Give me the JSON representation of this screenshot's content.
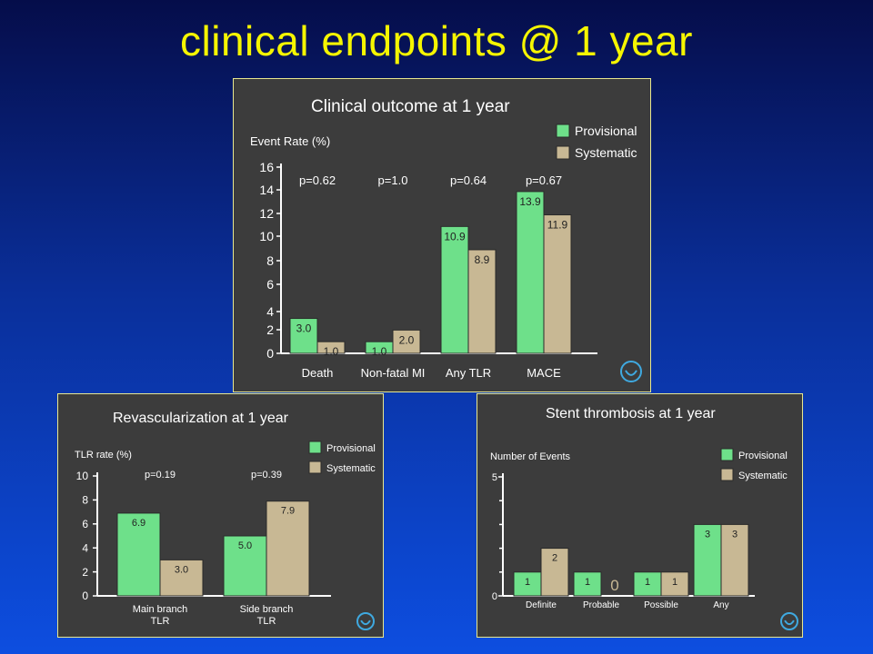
{
  "slide": {
    "title": "clinical endpoints @ 1 year"
  },
  "colors": {
    "provisional": "#6ee08a",
    "systematic": "#c8b894",
    "panel_bg": "#3c3c3c",
    "title": "#f5f500"
  },
  "chart_data": [
    {
      "id": "clinical",
      "type": "bar",
      "title": "Clinical outcome at 1 year",
      "ylabel": "Event Rate (%)",
      "xlabel": "",
      "ylim": [
        0,
        16
      ],
      "yticks": [
        0,
        2,
        4,
        6,
        8,
        10,
        12,
        14,
        16
      ],
      "categories": [
        "Death",
        "Non-fatal MI",
        "Any TLR",
        "MACE"
      ],
      "series": [
        {
          "name": "Provisional",
          "values": [
            3.0,
            1.0,
            10.9,
            13.9
          ],
          "labels": [
            "3.0",
            "1.0",
            "10.9",
            "13.9"
          ]
        },
        {
          "name": "Systematic",
          "values": [
            1.0,
            2.0,
            8.9,
            11.9
          ],
          "labels": [
            "1.0",
            "2.0",
            "8.9",
            "11.9"
          ]
        }
      ],
      "annotations": [
        "p=0.62",
        "p=1.0",
        "p=0.64",
        "p=0.67"
      ],
      "legend": "top-right",
      "grid": false
    },
    {
      "id": "revasc",
      "type": "bar",
      "title": "Revascularization at 1 year",
      "ylabel": "TLR rate (%)",
      "xlabel": "",
      "ylim": [
        0,
        10
      ],
      "yticks": [
        0,
        2,
        4,
        6,
        8,
        10
      ],
      "categories": [
        "Main branch\nTLR",
        "Side branch\nTLR"
      ],
      "series": [
        {
          "name": "Provisional",
          "values": [
            6.9,
            5.0
          ],
          "labels": [
            "6.9",
            "5.0"
          ]
        },
        {
          "name": "Systematic",
          "values": [
            3.0,
            7.9
          ],
          "labels": [
            "3.0",
            "7.9"
          ]
        }
      ],
      "annotations": [
        "p=0.19",
        "p=0.39"
      ],
      "legend": "top-right",
      "grid": false
    },
    {
      "id": "thrombosis",
      "type": "bar",
      "title": "Stent thrombosis at 1 year",
      "ylabel": "Number of Events",
      "xlabel": "",
      "ylim": [
        0,
        5
      ],
      "yticks": [
        0,
        5
      ],
      "categories": [
        "Definite",
        "Probable",
        "Possible",
        "Any"
      ],
      "series": [
        {
          "name": "Provisional",
          "values": [
            1,
            1,
            1,
            3
          ],
          "labels": [
            "1",
            "1",
            "1",
            "3"
          ]
        },
        {
          "name": "Systematic",
          "values": [
            2,
            0,
            1,
            3
          ],
          "labels": [
            "2",
            "0",
            "1",
            "3"
          ]
        }
      ],
      "annotations": [],
      "legend": "top-right",
      "grid": false
    }
  ]
}
